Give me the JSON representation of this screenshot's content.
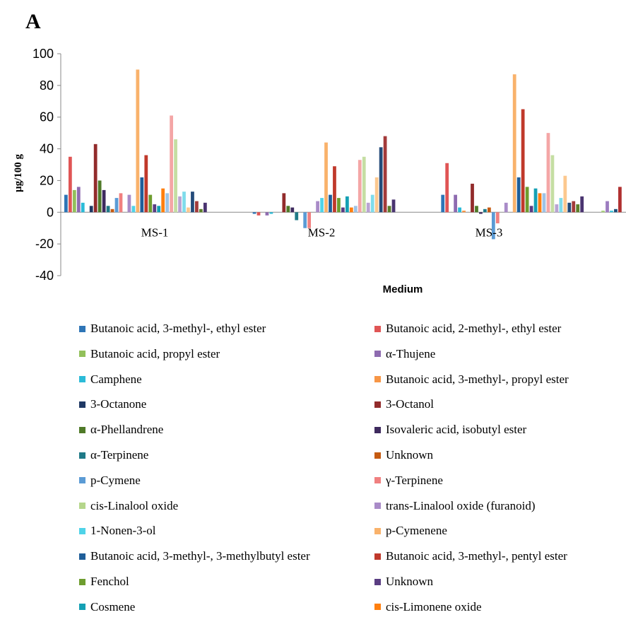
{
  "panel_label": "A",
  "chart_data": {
    "type": "bar",
    "title": "",
    "xlabel": "Medium",
    "ylabel": "µg/100 g",
    "ylim": [
      -40,
      100
    ],
    "yticks": [
      -40,
      -20,
      0,
      20,
      40,
      60,
      80,
      100
    ],
    "grid": false,
    "legend_position": "bottom",
    "categories": [
      "MS-1",
      "MS-2",
      "MS-3"
    ],
    "series": [
      {
        "name": "Butanoic acid, 3-methyl-, ethyl ester",
        "color": "#2E75B6",
        "values": [
          11,
          -1,
          11
        ]
      },
      {
        "name": "Butanoic acid, 2-methyl-, ethyl ester",
        "color": "#E05555",
        "values": [
          35,
          -2,
          31
        ]
      },
      {
        "name": "Butanoic acid, propyl ester",
        "color": "#92C05A",
        "values": [
          14,
          0,
          0
        ]
      },
      {
        "name": "α-Thujene",
        "color": "#8E6BB0",
        "values": [
          16,
          -2,
          11
        ]
      },
      {
        "name": "Camphene",
        "color": "#2BBBD8",
        "values": [
          6,
          -1,
          3
        ]
      },
      {
        "name": "Butanoic acid, 3-methyl-, propyl ester",
        "color": "#F79646",
        "values": [
          0,
          0,
          1
        ]
      },
      {
        "name": "3-Octanone",
        "color": "#1F3864",
        "values": [
          4,
          0,
          0
        ]
      },
      {
        "name": "3-Octanol",
        "color": "#922B2B",
        "values": [
          43,
          12,
          18
        ]
      },
      {
        "name": "α-Phellandrene",
        "color": "#4F7A28",
        "values": [
          20,
          4,
          4
        ]
      },
      {
        "name": "Isovaleric acid, isobutyl ester",
        "color": "#3E2A5E",
        "values": [
          14,
          3,
          -1
        ]
      },
      {
        "name": "α-Terpinene",
        "color": "#1F7A87",
        "values": [
          4,
          -5,
          2
        ]
      },
      {
        "name": "Unknown",
        "color": "#C55A11",
        "values": [
          2,
          0,
          3
        ]
      },
      {
        "name": "p-Cymene",
        "color": "#5B9BD5",
        "values": [
          9,
          -10,
          -17
        ]
      },
      {
        "name": "γ-Terpinene",
        "color": "#F08080",
        "values": [
          12,
          -10,
          -7
        ]
      },
      {
        "name": "cis-Linalool oxide",
        "color": "#B5D68B",
        "values": [
          0,
          0,
          0
        ]
      },
      {
        "name": "trans-Linalool oxide (furanoid)",
        "color": "#A98BC8",
        "values": [
          11,
          7,
          6
        ]
      },
      {
        "name": "1-Nonen-3-ol",
        "color": "#4FD3E8",
        "values": [
          4,
          9,
          0
        ]
      },
      {
        "name": "p-Cymenene",
        "color": "#F9B26B",
        "values": [
          90,
          44,
          87
        ]
      },
      {
        "name": "Butanoic acid, 3-methyl-, 3-methylbutyl ester",
        "color": "#1F5E99",
        "values": [
          22,
          11,
          22
        ]
      },
      {
        "name": "Butanoic acid, 3-methyl-, pentyl ester",
        "color": "#C0392B",
        "values": [
          36,
          29,
          65
        ]
      },
      {
        "name": "Fenchol",
        "color": "#6E9D2F",
        "values": [
          11,
          9,
          16
        ]
      },
      {
        "name": "Unknown",
        "color": "#5A3D82",
        "values": [
          5,
          3,
          4
        ]
      },
      {
        "name": "Cosmene",
        "color": "#14A0B4",
        "values": [
          4,
          10,
          15
        ]
      },
      {
        "name": "cis-Limonene oxide",
        "color": "#FF7F0E",
        "values": [
          15,
          3,
          12
        ]
      }
    ],
    "extra_bars_note": "",
    "extra_series": [
      {
        "color": "#9DC3E6",
        "values": [
          12,
          4,
          12
        ]
      },
      {
        "color": "#F4A6A6",
        "values": [
          61,
          33,
          50
        ]
      },
      {
        "color": "#C5DEA3",
        "values": [
          46,
          35,
          36
        ]
      },
      {
        "color": "#B9A3D3",
        "values": [
          10,
          6,
          5
        ]
      },
      {
        "color": "#7FDCEB",
        "values": [
          13,
          11,
          9
        ]
      },
      {
        "color": "#FCC88F",
        "values": [
          3,
          22,
          23
        ]
      },
      {
        "color": "#244B7A",
        "values": [
          13,
          41,
          6
        ]
      },
      {
        "color": "#A33A3A",
        "values": [
          7,
          48,
          7
        ]
      },
      {
        "color": "#5C7F2A",
        "values": [
          2,
          4,
          5
        ]
      },
      {
        "color": "#4A3470",
        "values": [
          6,
          8,
          10
        ]
      },
      {
        "color": "#2A8F9E",
        "values": [
          0,
          0,
          0
        ]
      },
      {
        "color": "#D77A2E",
        "values": [
          0,
          0,
          0
        ]
      },
      {
        "color": "#6FA8DC",
        "values": [
          0,
          0,
          0
        ]
      },
      {
        "color": "#EE9090",
        "values": [
          0,
          0,
          0
        ]
      },
      {
        "color": "#A9CF7E",
        "values": [
          0,
          0,
          1
        ]
      },
      {
        "color": "#9C7CC0",
        "values": [
          0,
          0,
          7
        ]
      },
      {
        "color": "#3EC7DF",
        "values": [
          0,
          0,
          1
        ]
      },
      {
        "color": "#1F4E79",
        "values": [
          0,
          0,
          2
        ]
      },
      {
        "color": "#B03030",
        "values": [
          0,
          0,
          16
        ]
      }
    ]
  }
}
